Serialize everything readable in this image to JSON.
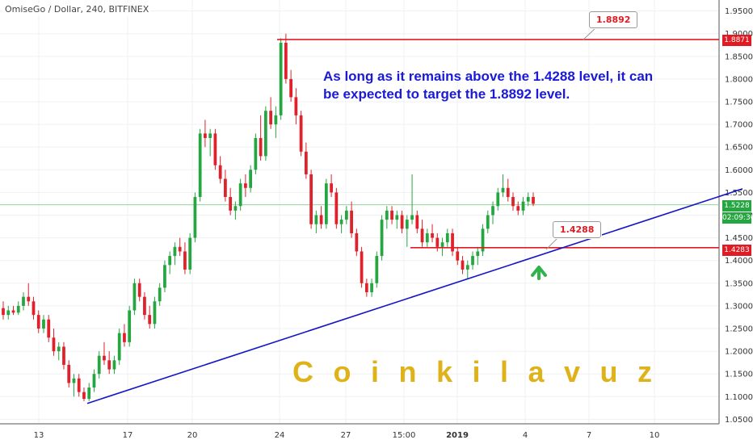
{
  "header": {
    "title": "OmiseGo / Dollar, 240, BITFINEX"
  },
  "annotation": {
    "text": "As long as it remains above the 1.4288 level, it can be expected to target the 1.8892 level."
  },
  "watermark": {
    "text": "Coinkilavuz"
  },
  "callouts": {
    "target": "1.8892",
    "support": "1.4288"
  },
  "price_tags": {
    "resistance": "1.8871",
    "current": "1.5228",
    "countdown": "02:09:36",
    "support": "1.4283"
  },
  "colors": {
    "up": "#26a641",
    "down": "#e0202a",
    "trendline": "#1414c8",
    "levels": "#e01b24",
    "arrow": "#2fb34a",
    "text_blue": "#1a1ad8",
    "watermark": "#e0b21a"
  },
  "chart_data": {
    "type": "candlestick",
    "ylim": [
      1.04,
      1.96
    ],
    "y_ticks": [
      "1.9500",
      "1.9000",
      "1.8500",
      "1.8000",
      "1.7500",
      "1.7000",
      "1.6500",
      "1.6000",
      "1.5500",
      "1.5000",
      "1.4500",
      "1.4000",
      "1.3500",
      "1.3000",
      "1.2500",
      "1.2000",
      "1.1500",
      "1.1000",
      "1.0500"
    ],
    "x_ticks": [
      "13",
      "17",
      "20",
      "24",
      "27",
      "15:00",
      "2019",
      "4",
      "7",
      "10"
    ],
    "horizontal_levels": [
      {
        "label": "1.8871",
        "value": 1.8871
      },
      {
        "label": "1.4283",
        "value": 1.4283
      },
      {
        "label": "1.5228",
        "value": 1.5228
      }
    ],
    "trendline": {
      "from": [
        1.085
      ],
      "to": [
        1.558
      ]
    },
    "candles": [
      [
        1.295,
        1.31,
        1.27,
        1.28
      ],
      [
        1.28,
        1.3,
        1.27,
        1.29
      ],
      [
        1.29,
        1.3,
        1.28,
        1.285
      ],
      [
        1.285,
        1.31,
        1.28,
        1.3
      ],
      [
        1.3,
        1.33,
        1.29,
        1.32
      ],
      [
        1.32,
        1.35,
        1.3,
        1.31
      ],
      [
        1.31,
        1.32,
        1.27,
        1.28
      ],
      [
        1.28,
        1.29,
        1.24,
        1.25
      ],
      [
        1.25,
        1.28,
        1.24,
        1.27
      ],
      [
        1.27,
        1.28,
        1.22,
        1.23
      ],
      [
        1.23,
        1.25,
        1.19,
        1.2
      ],
      [
        1.2,
        1.22,
        1.18,
        1.21
      ],
      [
        1.21,
        1.22,
        1.16,
        1.17
      ],
      [
        1.17,
        1.18,
        1.12,
        1.13
      ],
      [
        1.13,
        1.15,
        1.1,
        1.14
      ],
      [
        1.14,
        1.15,
        1.1,
        1.11
      ],
      [
        1.11,
        1.12,
        1.09,
        1.095
      ],
      [
        1.095,
        1.13,
        1.09,
        1.12
      ],
      [
        1.12,
        1.16,
        1.11,
        1.15
      ],
      [
        1.15,
        1.2,
        1.14,
        1.19
      ],
      [
        1.19,
        1.22,
        1.17,
        1.18
      ],
      [
        1.18,
        1.2,
        1.15,
        1.16
      ],
      [
        1.16,
        1.19,
        1.15,
        1.18
      ],
      [
        1.18,
        1.25,
        1.17,
        1.24
      ],
      [
        1.24,
        1.26,
        1.21,
        1.22
      ],
      [
        1.22,
        1.3,
        1.21,
        1.29
      ],
      [
        1.29,
        1.36,
        1.28,
        1.35
      ],
      [
        1.35,
        1.36,
        1.31,
        1.32
      ],
      [
        1.32,
        1.33,
        1.27,
        1.28
      ],
      [
        1.28,
        1.3,
        1.25,
        1.26
      ],
      [
        1.26,
        1.32,
        1.25,
        1.31
      ],
      [
        1.31,
        1.35,
        1.3,
        1.34
      ],
      [
        1.34,
        1.4,
        1.33,
        1.39
      ],
      [
        1.39,
        1.42,
        1.37,
        1.41
      ],
      [
        1.41,
        1.44,
        1.39,
        1.43
      ],
      [
        1.43,
        1.45,
        1.41,
        1.42
      ],
      [
        1.42,
        1.44,
        1.37,
        1.38
      ],
      [
        1.38,
        1.46,
        1.37,
        1.45
      ],
      [
        1.45,
        1.55,
        1.44,
        1.54
      ],
      [
        1.54,
        1.69,
        1.53,
        1.68
      ],
      [
        1.68,
        1.71,
        1.65,
        1.67
      ],
      [
        1.67,
        1.69,
        1.63,
        1.68
      ],
      [
        1.68,
        1.69,
        1.6,
        1.61
      ],
      [
        1.61,
        1.63,
        1.57,
        1.58
      ],
      [
        1.58,
        1.6,
        1.53,
        1.54
      ],
      [
        1.54,
        1.56,
        1.5,
        1.51
      ],
      [
        1.51,
        1.53,
        1.49,
        1.52
      ],
      [
        1.52,
        1.58,
        1.51,
        1.57
      ],
      [
        1.57,
        1.59,
        1.54,
        1.56
      ],
      [
        1.56,
        1.61,
        1.55,
        1.6
      ],
      [
        1.6,
        1.68,
        1.59,
        1.67
      ],
      [
        1.67,
        1.72,
        1.62,
        1.63
      ],
      [
        1.63,
        1.74,
        1.62,
        1.73
      ],
      [
        1.73,
        1.76,
        1.69,
        1.7
      ],
      [
        1.7,
        1.74,
        1.67,
        1.72
      ],
      [
        1.72,
        1.89,
        1.71,
        1.88
      ],
      [
        1.88,
        1.9,
        1.79,
        1.8
      ],
      [
        1.8,
        1.82,
        1.75,
        1.76
      ],
      [
        1.76,
        1.78,
        1.7,
        1.72
      ],
      [
        1.72,
        1.73,
        1.63,
        1.64
      ],
      [
        1.64,
        1.66,
        1.58,
        1.59
      ],
      [
        1.59,
        1.6,
        1.47,
        1.48
      ],
      [
        1.48,
        1.51,
        1.46,
        1.5
      ],
      [
        1.5,
        1.52,
        1.47,
        1.48
      ],
      [
        1.48,
        1.58,
        1.47,
        1.57
      ],
      [
        1.57,
        1.59,
        1.54,
        1.55
      ],
      [
        1.55,
        1.56,
        1.47,
        1.48
      ],
      [
        1.48,
        1.5,
        1.46,
        1.49
      ],
      [
        1.49,
        1.52,
        1.48,
        1.51
      ],
      [
        1.51,
        1.53,
        1.45,
        1.46
      ],
      [
        1.46,
        1.47,
        1.41,
        1.42
      ],
      [
        1.42,
        1.43,
        1.34,
        1.35
      ],
      [
        1.35,
        1.36,
        1.32,
        1.33
      ],
      [
        1.33,
        1.36,
        1.32,
        1.35
      ],
      [
        1.35,
        1.42,
        1.34,
        1.41
      ],
      [
        1.41,
        1.5,
        1.4,
        1.49
      ],
      [
        1.49,
        1.52,
        1.47,
        1.51
      ],
      [
        1.51,
        1.52,
        1.48,
        1.49
      ],
      [
        1.49,
        1.51,
        1.47,
        1.5
      ],
      [
        1.5,
        1.51,
        1.46,
        1.47
      ],
      [
        1.47,
        1.5,
        1.43,
        1.49
      ],
      [
        1.49,
        1.59,
        1.48,
        1.5
      ],
      [
        1.5,
        1.51,
        1.46,
        1.47
      ],
      [
        1.47,
        1.49,
        1.43,
        1.44
      ],
      [
        1.44,
        1.47,
        1.43,
        1.46
      ],
      [
        1.46,
        1.48,
        1.44,
        1.45
      ],
      [
        1.45,
        1.46,
        1.42,
        1.43
      ],
      [
        1.43,
        1.45,
        1.41,
        1.44
      ],
      [
        1.44,
        1.47,
        1.43,
        1.46
      ],
      [
        1.46,
        1.47,
        1.41,
        1.42
      ],
      [
        1.42,
        1.43,
        1.39,
        1.4
      ],
      [
        1.4,
        1.41,
        1.37,
        1.38
      ],
      [
        1.38,
        1.4,
        1.36,
        1.39
      ],
      [
        1.39,
        1.42,
        1.38,
        1.41
      ],
      [
        1.41,
        1.43,
        1.39,
        1.42
      ],
      [
        1.42,
        1.48,
        1.41,
        1.47
      ],
      [
        1.47,
        1.51,
        1.46,
        1.5
      ],
      [
        1.5,
        1.53,
        1.48,
        1.52
      ],
      [
        1.52,
        1.56,
        1.51,
        1.55
      ],
      [
        1.55,
        1.59,
        1.54,
        1.56
      ],
      [
        1.56,
        1.58,
        1.53,
        1.54
      ],
      [
        1.54,
        1.55,
        1.51,
        1.52
      ],
      [
        1.52,
        1.53,
        1.5,
        1.51
      ],
      [
        1.51,
        1.54,
        1.5,
        1.53
      ],
      [
        1.53,
        1.55,
        1.52,
        1.54
      ],
      [
        1.54,
        1.55,
        1.52,
        1.525
      ]
    ]
  }
}
